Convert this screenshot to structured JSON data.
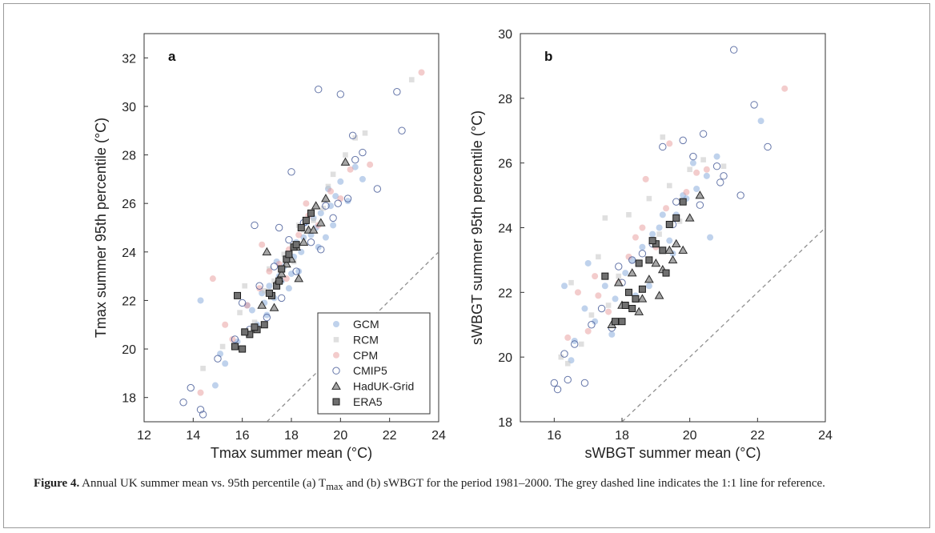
{
  "figure": {
    "caption_label": "Figure 4.",
    "caption_part1": " Annual UK summer mean vs. 95th percentile (a) T",
    "caption_sub": "max",
    "caption_part2": " and (b) sWBGT for the period 1981–2000. The grey dashed line indicates the 1:1 line for reference."
  },
  "legend": {
    "entries": [
      {
        "name": "GCM",
        "marker": "filled-circle",
        "color": "#7fa6d9"
      },
      {
        "name": "RCM",
        "marker": "filled-square",
        "color": "#c4c4c4"
      },
      {
        "name": "CPM",
        "marker": "filled-circle",
        "color": "#e89a9a"
      },
      {
        "name": "CMIP5",
        "marker": "open-circle",
        "color": "#4a5e9a"
      },
      {
        "name": "HadUK-Grid",
        "marker": "triangle",
        "color": "#a6a6a6"
      },
      {
        "name": "ERA5",
        "marker": "square",
        "color": "#707070"
      }
    ]
  },
  "chart_data": [
    {
      "type": "scatter",
      "panel_label": "a",
      "xlabel": "Tmax summer mean (°C)",
      "ylabel": "Tmax summer 95th percentile (°C)",
      "xlim": [
        12,
        24
      ],
      "ylim": [
        17,
        33
      ],
      "xticks": [
        "12",
        "14",
        "16",
        "18",
        "20",
        "22",
        "24"
      ],
      "yticks": [
        "18",
        "20",
        "22",
        "24",
        "26",
        "28",
        "30",
        "32"
      ],
      "reference_line": {
        "style": "dashed",
        "color": "#909090",
        "relation": "y = x"
      },
      "legend_position": "lower-right",
      "series": [
        {
          "name": "GCM",
          "x": [
            14.3,
            14.9,
            15.3,
            15.8,
            16.1,
            16.4,
            16.6,
            16.9,
            17.1,
            17.3,
            17.5,
            17.7,
            17.9,
            18.1,
            18.2,
            18.4,
            18.6,
            18.8,
            19.0,
            19.2,
            19.4,
            19.6,
            19.8,
            20.0,
            20.3,
            20.6,
            20.9,
            16.2,
            17.0,
            17.6,
            18.0,
            18.5,
            19.1,
            19.5,
            15.1,
            16.8,
            17.4,
            18.3,
            18.9,
            19.7
          ],
          "y": [
            22.0,
            18.5,
            19.4,
            20.3,
            20.7,
            21.6,
            21.0,
            21.9,
            22.6,
            22.1,
            23.0,
            23.4,
            22.5,
            23.8,
            24.4,
            24.0,
            25.2,
            24.7,
            25.0,
            25.6,
            24.6,
            25.9,
            26.3,
            26.9,
            26.1,
            27.5,
            27.0,
            21.8,
            21.4,
            22.8,
            23.1,
            24.6,
            24.2,
            26.6,
            19.8,
            22.3,
            23.6,
            23.2,
            25.4,
            25.1
          ]
        },
        {
          "name": "RCM",
          "x": [
            14.4,
            15.2,
            15.9,
            16.5,
            16.9,
            17.3,
            17.7,
            18.1,
            18.5,
            18.9,
            19.3,
            19.7,
            20.2,
            20.6,
            21.0,
            22.9,
            16.1,
            17.1,
            18.3,
            19.5
          ],
          "y": [
            19.2,
            20.1,
            21.5,
            21.1,
            22.4,
            22.8,
            23.9,
            23.6,
            24.9,
            25.3,
            25.8,
            27.2,
            28.0,
            28.7,
            28.9,
            31.1,
            22.6,
            23.3,
            25.1,
            26.7
          ]
        },
        {
          "name": "CPM",
          "x": [
            14.3,
            14.8,
            15.6,
            16.2,
            16.7,
            17.1,
            17.5,
            17.9,
            18.3,
            18.7,
            19.1,
            19.6,
            20.0,
            20.4,
            21.2,
            23.3,
            15.3,
            16.8,
            17.8,
            18.6
          ],
          "y": [
            18.2,
            22.9,
            20.4,
            21.8,
            22.5,
            23.2,
            23.5,
            24.1,
            24.7,
            25.5,
            25.1,
            26.5,
            26.2,
            27.4,
            27.6,
            31.4,
            21.0,
            24.3,
            22.9,
            26.0
          ]
        },
        {
          "name": "CMIP5",
          "x": [
            13.6,
            13.9,
            14.3,
            14.4,
            15.0,
            15.7,
            16.0,
            16.3,
            16.7,
            17.0,
            17.3,
            17.6,
            17.9,
            18.2,
            18.5,
            18.8,
            19.1,
            19.4,
            19.7,
            20.0,
            20.3,
            20.6,
            20.9,
            21.5,
            22.3,
            22.5,
            19.2,
            19.9,
            20.5,
            17.5,
            16.5,
            18.0
          ],
          "y": [
            17.8,
            18.4,
            17.5,
            17.3,
            19.6,
            20.4,
            21.9,
            20.8,
            22.6,
            21.3,
            23.4,
            22.1,
            24.5,
            23.2,
            25.2,
            24.4,
            30.7,
            25.9,
            25.4,
            30.5,
            26.2,
            27.8,
            28.1,
            26.6,
            30.6,
            29.0,
            24.1,
            26.0,
            28.8,
            25.0,
            25.1,
            27.3
          ]
        },
        {
          "name": "HadUK-Grid",
          "x": [
            16.8,
            17.0,
            17.3,
            17.5,
            17.8,
            18.0,
            18.3,
            18.5,
            18.7,
            19.0,
            19.2,
            19.4,
            20.2,
            17.6,
            18.2,
            18.9
          ],
          "y": [
            21.8,
            24.0,
            21.7,
            22.9,
            23.5,
            23.7,
            22.9,
            24.4,
            24.9,
            25.9,
            25.2,
            26.2,
            27.7,
            23.1,
            24.2,
            24.9
          ]
        },
        {
          "name": "ERA5",
          "x": [
            15.7,
            16.0,
            16.3,
            16.6,
            16.9,
            17.2,
            17.4,
            17.6,
            17.8,
            17.9,
            18.1,
            18.4,
            18.6,
            18.8,
            15.8,
            16.1,
            16.5,
            17.1,
            17.5,
            18.2
          ],
          "y": [
            20.1,
            20.0,
            20.6,
            20.8,
            21.0,
            22.2,
            22.6,
            23.3,
            23.7,
            23.9,
            24.2,
            25.0,
            25.3,
            25.6,
            22.2,
            20.7,
            20.9,
            22.3,
            22.8,
            24.3
          ]
        }
      ]
    },
    {
      "type": "scatter",
      "panel_label": "b",
      "xlabel": "sWBGT summer mean (°C)",
      "ylabel": "sWBGT summer 95th percentile (°C)",
      "xlim": [
        15,
        24
      ],
      "ylim": [
        18,
        30
      ],
      "xticks": [
        "16",
        "18",
        "20",
        "22",
        "24"
      ],
      "yticks": [
        "18",
        "20",
        "22",
        "24",
        "26",
        "28",
        "30"
      ],
      "reference_line": {
        "style": "dashed",
        "color": "#909090",
        "relation": "y = x"
      },
      "legend_position": "none",
      "series": [
        {
          "name": "GCM",
          "x": [
            16.3,
            16.6,
            16.9,
            17.2,
            17.5,
            17.8,
            18.1,
            18.3,
            18.6,
            18.9,
            19.1,
            19.4,
            19.6,
            19.9,
            20.2,
            20.5,
            20.8,
            22.1,
            17.0,
            17.7,
            18.4,
            19.2,
            19.8,
            20.6,
            16.5,
            18.8,
            19.5,
            20.1
          ],
          "y": [
            22.2,
            20.5,
            21.5,
            21.1,
            22.2,
            21.8,
            22.6,
            23.0,
            23.4,
            23.8,
            24.0,
            23.6,
            24.4,
            24.9,
            25.2,
            25.6,
            26.2,
            27.3,
            22.9,
            20.7,
            21.9,
            24.4,
            25.0,
            23.7,
            19.9,
            22.2,
            23.2,
            26.0
          ]
        },
        {
          "name": "RCM",
          "x": [
            16.2,
            16.5,
            16.8,
            17.1,
            17.3,
            17.6,
            17.9,
            18.2,
            18.5,
            18.8,
            19.1,
            19.4,
            19.7,
            20.0,
            20.4,
            21.0,
            16.4,
            17.5,
            19.2
          ],
          "y": [
            20.0,
            22.3,
            20.4,
            21.3,
            23.1,
            21.6,
            22.5,
            24.4,
            22.9,
            24.9,
            23.8,
            25.3,
            24.2,
            25.8,
            26.1,
            25.9,
            19.8,
            24.3,
            26.8
          ]
        },
        {
          "name": "CPM",
          "x": [
            16.4,
            16.7,
            17.0,
            17.3,
            17.6,
            17.9,
            18.2,
            18.4,
            18.7,
            19.0,
            19.3,
            19.6,
            19.9,
            20.2,
            20.5,
            22.8,
            17.2,
            18.6,
            19.4
          ],
          "y": [
            20.6,
            22.0,
            20.8,
            21.9,
            21.4,
            22.3,
            23.1,
            23.7,
            25.5,
            23.4,
            24.6,
            24.3,
            25.1,
            25.7,
            25.8,
            28.3,
            22.5,
            24.0,
            26.6
          ]
        },
        {
          "name": "CMIP5",
          "x": [
            16.0,
            16.1,
            16.4,
            16.6,
            16.9,
            17.1,
            17.4,
            17.7,
            18.0,
            18.3,
            18.6,
            18.9,
            19.2,
            19.5,
            19.8,
            20.1,
            20.4,
            20.8,
            21.0,
            21.3,
            21.5,
            21.9,
            22.3,
            16.3,
            17.9,
            19.6,
            20.3,
            20.9
          ],
          "y": [
            19.2,
            19.0,
            19.3,
            20.4,
            19.2,
            21.0,
            21.5,
            20.9,
            22.3,
            23.0,
            23.2,
            23.5,
            26.5,
            24.1,
            26.7,
            26.2,
            26.9,
            25.9,
            25.6,
            29.5,
            25.0,
            27.8,
            26.5,
            20.1,
            22.8,
            24.8,
            24.7,
            25.4
          ]
        },
        {
          "name": "HadUK-Grid",
          "x": [
            17.7,
            18.0,
            18.3,
            18.5,
            18.6,
            18.8,
            19.0,
            19.2,
            19.4,
            19.5,
            19.6,
            19.8,
            20.0,
            20.3,
            17.9,
            19.1
          ],
          "y": [
            21.0,
            21.6,
            22.6,
            21.4,
            21.8,
            22.4,
            22.9,
            22.7,
            23.3,
            23.0,
            23.5,
            23.3,
            24.3,
            25.0,
            22.3,
            21.9
          ]
        },
        {
          "name": "ERA5",
          "x": [
            17.5,
            17.8,
            18.0,
            18.1,
            18.3,
            18.4,
            18.6,
            18.8,
            19.0,
            19.2,
            19.4,
            19.6,
            19.8,
            18.2,
            18.5,
            18.9,
            19.3
          ],
          "y": [
            22.5,
            21.1,
            21.1,
            21.6,
            21.5,
            21.8,
            22.1,
            23.0,
            23.5,
            23.3,
            24.1,
            24.3,
            24.8,
            22.0,
            22.9,
            23.6,
            22.6
          ]
        }
      ]
    }
  ]
}
